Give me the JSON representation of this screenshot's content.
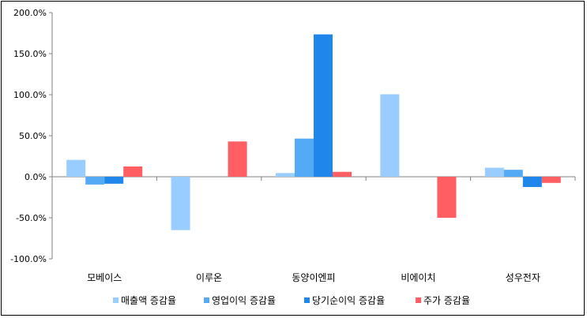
{
  "chart_data": {
    "type": "bar",
    "categories": [
      "모베이스",
      "이루온",
      "동양이엔피",
      "비에이치",
      "성우전자"
    ],
    "series": [
      {
        "name": "매출액 증감율",
        "color": "#99ccff",
        "values": [
          20.5,
          -65.0,
          4.5,
          100.5,
          11.0
        ]
      },
      {
        "name": "영업이익 증감율",
        "color": "#55aaf5",
        "values": [
          -9.5,
          0,
          46.5,
          0,
          8.5
        ]
      },
      {
        "name": "당기순이익 증감율",
        "color": "#1f86ec",
        "values": [
          -8.5,
          0,
          173.5,
          0,
          -12.5
        ]
      },
      {
        "name": "주가 증감율",
        "color": "#ff5e63",
        "values": [
          12.5,
          43.0,
          6.0,
          -50.0,
          -7.5
        ]
      }
    ],
    "yticks": [
      "200.0%",
      "150.0%",
      "100.0%",
      "50.0%",
      "0.0%",
      "-50.0%",
      "-100.0%"
    ],
    "ylim": [
      -100,
      200
    ],
    "legend_position": "bottom",
    "grid": false
  }
}
